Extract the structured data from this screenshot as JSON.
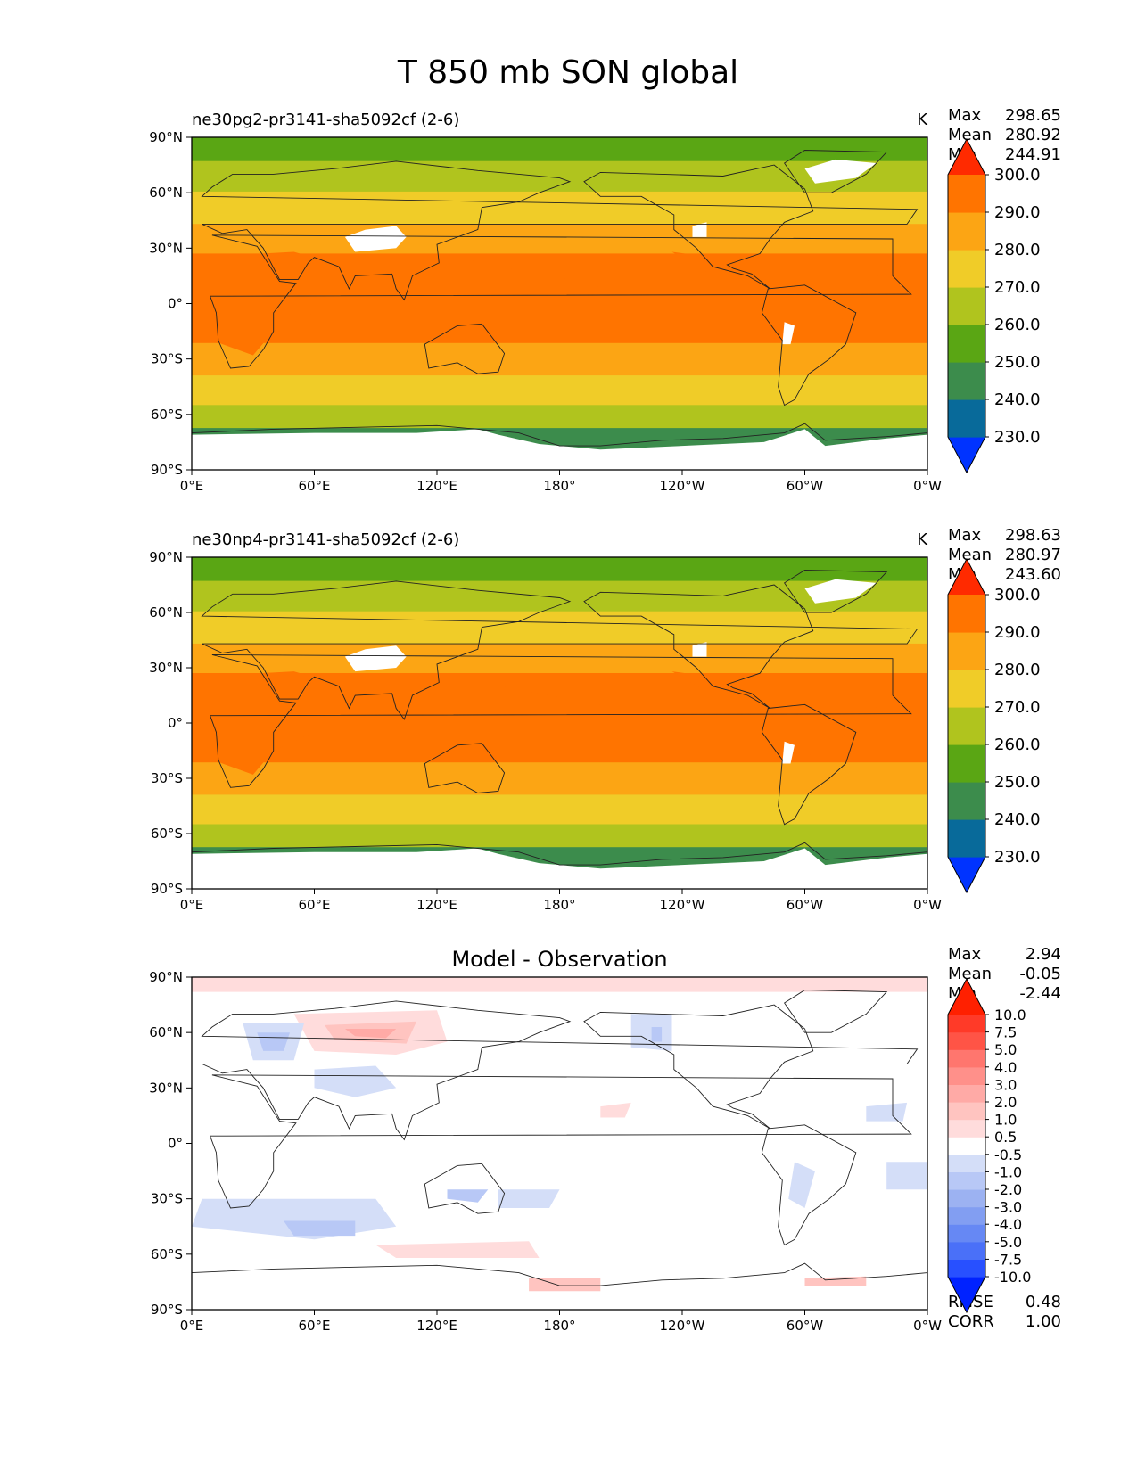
{
  "title": "T 850 mb SON global",
  "chart_data": [
    {
      "type": "heatmap",
      "title": "ne30pg2-pr3141-sha5092cf (2-6)",
      "units": "K",
      "stats": {
        "max_label": "Max",
        "max": "298.65",
        "mean_label": "Mean",
        "mean": "280.92",
        "min_label": "Min",
        "min": "244.91"
      },
      "colorbar": {
        "levels": [
          "230.0",
          "240.0",
          "250.0",
          "260.0",
          "270.0",
          "280.0",
          "290.0",
          "300.0"
        ],
        "colors": [
          "#0033ff",
          "#086a9a",
          "#3c8c4c",
          "#5aa614",
          "#b0c41e",
          "#f0cc28",
          "#fca514",
          "#ff7400",
          "#ff2a00"
        ]
      },
      "x_ticks": [
        "0°E",
        "60°E",
        "120°E",
        "180°",
        "120°W",
        "60°W",
        "0°W"
      ],
      "y_ticks": [
        "90°N",
        "60°N",
        "30°N",
        "0°",
        "30°S",
        "60°S",
        "90°S"
      ],
      "xlim": [
        0,
        360
      ],
      "ylim": [
        -90,
        90
      ],
      "zonal_profile_deg": [
        -72,
        -62,
        -47,
        -30,
        -12,
        20,
        35,
        52,
        70,
        85
      ],
      "zonal_profile_level": [
        1,
        3,
        4,
        5,
        6,
        6,
        5,
        4,
        3,
        2
      ]
    },
    {
      "type": "heatmap",
      "title": "ne30np4-pr3141-sha5092cf (2-6)",
      "units": "K",
      "stats": {
        "max_label": "Max",
        "max": "298.63",
        "mean_label": "Mean",
        "mean": "280.97",
        "min_label": "Min",
        "min": "243.60"
      },
      "colorbar": {
        "levels": [
          "230.0",
          "240.0",
          "250.0",
          "260.0",
          "270.0",
          "280.0",
          "290.0",
          "300.0"
        ],
        "colors": [
          "#0033ff",
          "#086a9a",
          "#3c8c4c",
          "#5aa614",
          "#b0c41e",
          "#f0cc28",
          "#fca514",
          "#ff7400",
          "#ff2a00"
        ]
      },
      "x_ticks": [
        "0°E",
        "60°E",
        "120°E",
        "180°",
        "120°W",
        "60°W",
        "0°W"
      ],
      "y_ticks": [
        "90°N",
        "60°N",
        "30°N",
        "0°",
        "30°S",
        "60°S",
        "90°S"
      ],
      "xlim": [
        0,
        360
      ],
      "ylim": [
        -90,
        90
      ],
      "zonal_profile_deg": [
        -72,
        -62,
        -47,
        -30,
        -12,
        20,
        35,
        52,
        70,
        85
      ],
      "zonal_profile_level": [
        1,
        3,
        4,
        5,
        6,
        6,
        5,
        4,
        3,
        2
      ]
    },
    {
      "type": "heatmap",
      "title": "Model - Observation",
      "units": "",
      "stats": {
        "max_label": "Max",
        "max": "2.94",
        "mean_label": "Mean",
        "mean": "-0.05",
        "min_label": "Min",
        "min": "-2.44"
      },
      "colorbar": {
        "levels": [
          "-10.0",
          "-7.5",
          "-5.0",
          "-4.0",
          "-3.0",
          "-2.0",
          "-1.0",
          "-0.5",
          "0.5",
          "1.0",
          "2.0",
          "3.0",
          "4.0",
          "5.0",
          "7.5",
          "10.0"
        ],
        "colors": [
          "#0022ff",
          "#2850ff",
          "#4a70f8",
          "#6688f4",
          "#829ef2",
          "#9cb2f2",
          "#b8c8f6",
          "#d4def8",
          "#ffffff",
          "#ffdcdc",
          "#ffc4c0",
          "#ffaaa6",
          "#ff908a",
          "#ff766e",
          "#ff5446",
          "#ff3a28",
          "#ff2000"
        ]
      },
      "x_ticks": [
        "0°E",
        "60°E",
        "120°E",
        "180°",
        "120°W",
        "60°W",
        "0°W"
      ],
      "y_ticks": [
        "90°N",
        "60°N",
        "30°N",
        "0°",
        "30°S",
        "60°S",
        "90°S"
      ],
      "xlim": [
        0,
        360
      ],
      "ylim": [
        -90,
        90
      ],
      "metrics": {
        "rmse_label": "RMSE",
        "rmse": "0.48",
        "corr_label": "CORR",
        "corr": "1.00"
      }
    }
  ]
}
